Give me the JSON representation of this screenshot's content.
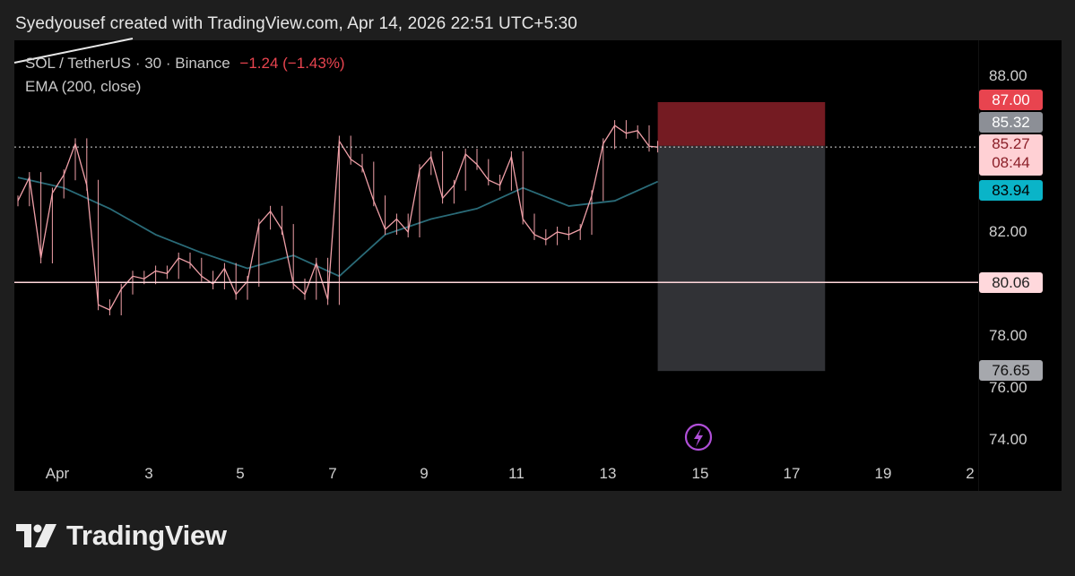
{
  "header": {
    "credit": "Syedyousef created with TradingView.com, Apr 14, 2026 22:51 UTC+5:30"
  },
  "legend": {
    "symbol": "SOL / TetherUS · 30 · Binance",
    "change": "−1.24 (−1.43%)",
    "indicator": "EMA (200, close)"
  },
  "brand": {
    "name": "TradingView"
  },
  "colors": {
    "background": "#000000",
    "frame": "#1e1e1e",
    "candles": "#f0a0a8",
    "ema": "#2a6b78",
    "stop_zone": "#7a1c24",
    "target_zone": "#3a3b3f",
    "stop_label": "#e8444f",
    "entry_label": "#8c8f96",
    "last_price_label": "#ffd0d4",
    "ema_label": "#0ab4c8",
    "support_line": "#ffd8dc",
    "target_label": "#a6a8ad"
  },
  "chart_data": {
    "type": "line",
    "title": "SOL / TetherUS · 30 · Binance",
    "series": [
      {
        "name": "SOL / TetherUS",
        "x": [
          "Apr 1 00:00",
          "Apr 1 06:00",
          "Apr 1 12:00",
          "Apr 1 18:00",
          "Apr 2 00:00",
          "Apr 2 06:00",
          "Apr 2 12:00",
          "Apr 2 18:00",
          "Apr 3 00:00",
          "Apr 3 06:00",
          "Apr 3 12:00",
          "Apr 3 18:00",
          "Apr 4 00:00",
          "Apr 4 06:00",
          "Apr 4 12:00",
          "Apr 4 18:00",
          "Apr 5 00:00",
          "Apr 5 06:00",
          "Apr 5 12:00",
          "Apr 5 18:00",
          "Apr 6 00:00",
          "Apr 6 06:00",
          "Apr 6 12:00",
          "Apr 6 18:00",
          "Apr 7 00:00",
          "Apr 7 06:00",
          "Apr 7 12:00",
          "Apr 7 18:00",
          "Apr 8 00:00",
          "Apr 8 06:00",
          "Apr 8 12:00",
          "Apr 8 18:00",
          "Apr 9 00:00",
          "Apr 9 06:00",
          "Apr 9 12:00",
          "Apr 9 18:00",
          "Apr 10 00:00",
          "Apr 10 06:00",
          "Apr 10 12:00",
          "Apr 10 18:00",
          "Apr 11 00:00",
          "Apr 11 06:00",
          "Apr 11 12:00",
          "Apr 11 18:00",
          "Apr 12 00:00",
          "Apr 12 06:00",
          "Apr 12 12:00",
          "Apr 12 18:00",
          "Apr 13 00:00",
          "Apr 13 06:00",
          "Apr 13 12:00",
          "Apr 13 18:00",
          "Apr 14 00:00",
          "Apr 14 06:00",
          "Apr 14 12:00",
          "Apr 14 18:00",
          "Apr 14 22:30"
        ],
        "values": [
          83.2,
          84.1,
          81.0,
          83.5,
          84.2,
          85.4,
          83.8,
          79.2,
          79.0,
          79.8,
          80.3,
          80.2,
          80.5,
          80.4,
          81.0,
          80.8,
          80.3,
          80.0,
          80.6,
          79.6,
          80.1,
          82.3,
          82.8,
          82.1,
          80.0,
          79.6,
          80.8,
          79.4,
          85.5,
          84.8,
          84.5,
          83.2,
          82.1,
          82.5,
          82.0,
          84.4,
          84.9,
          83.3,
          83.8,
          85.0,
          84.6,
          84.0,
          83.8,
          84.9,
          82.5,
          81.9,
          81.7,
          82.0,
          81.9,
          82.1,
          83.4,
          85.4,
          86.1,
          85.8,
          85.9,
          85.3,
          85.27
        ]
      },
      {
        "name": "EMA (200, close)",
        "x": [
          "Apr 1 00:00",
          "Apr 2 00:00",
          "Apr 3 00:00",
          "Apr 4 00:00",
          "Apr 5 00:00",
          "Apr 6 00:00",
          "Apr 7 00:00",
          "Apr 8 00:00",
          "Apr 9 00:00",
          "Apr 10 00:00",
          "Apr 11 00:00",
          "Apr 12 00:00",
          "Apr 13 00:00",
          "Apr 14 00:00",
          "Apr 14 22:30"
        ],
        "values": [
          84.1,
          83.7,
          82.9,
          81.9,
          81.2,
          80.6,
          81.1,
          80.3,
          81.9,
          82.5,
          82.9,
          83.7,
          83.0,
          83.2,
          83.94
        ]
      }
    ],
    "levels": {
      "stop": 87.0,
      "entry": 85.32,
      "last_price": 85.27,
      "ema": 83.94,
      "support": 80.06,
      "target": 76.65
    },
    "position": {
      "kind": "short",
      "start": "Apr 14 22:30",
      "end": "Apr 18 14:00",
      "stop": 87.0,
      "entry": 85.32,
      "target": 76.65
    },
    "y_ticks": [
      74.0,
      76.0,
      78.0,
      82.0,
      88.0
    ],
    "y_tick_labels": [
      "74.00",
      "76.00",
      "78.00",
      "82.00",
      "88.00"
    ],
    "x_tick_labels": [
      "Apr",
      "3",
      "5",
      "7",
      "9",
      "11",
      "13",
      "15",
      "17",
      "19",
      "2"
    ],
    "price_labels": {
      "stop": "87.00",
      "entry": "85.32",
      "last": "85.27",
      "countdown": "08:44",
      "ema": "83.94",
      "support": "80.06",
      "target": "76.65"
    },
    "ylim": [
      73.4,
      89.2
    ],
    "grid": false
  }
}
